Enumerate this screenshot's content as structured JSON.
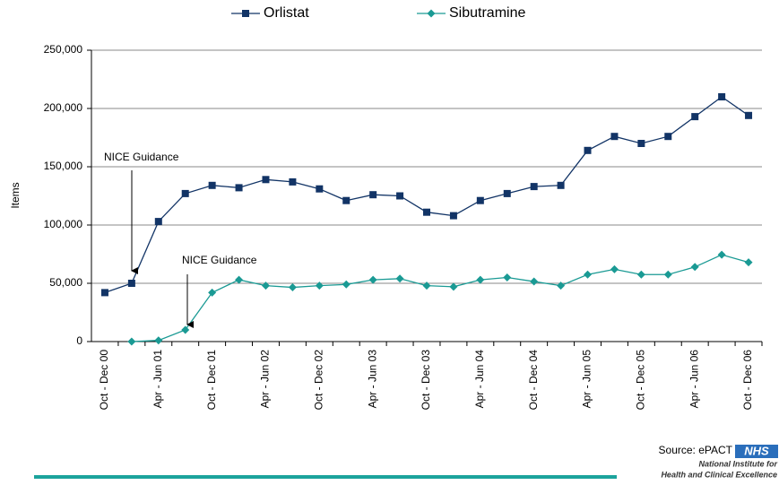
{
  "chart_data": {
    "type": "line",
    "y_label": "Items",
    "categories": [
      "Oct - Dec 00",
      null,
      "Apr - Jun 01",
      null,
      "Oct - Dec 01",
      null,
      "Apr - Jun 02",
      null,
      "Oct - Dec 02",
      null,
      "Apr - Jun 03",
      null,
      "Oct - Dec 03",
      null,
      "Apr - Jun 04",
      null,
      "Oct - Dec 04",
      null,
      "Apr - Jun 05",
      null,
      "Oct - Dec 05",
      null,
      "Apr - Jun 06",
      null,
      "Oct - Dec 06"
    ],
    "series": [
      {
        "name": "Orlistat",
        "color": "#123466",
        "marker": "square",
        "values": [
          42000,
          50000,
          103000,
          127000,
          134000,
          132000,
          139000,
          137000,
          131000,
          121000,
          126000,
          125000,
          111000,
          108000,
          121000,
          127000,
          133000,
          134000,
          164000,
          176000,
          170000,
          176000,
          193000,
          210000,
          194000
        ]
      },
      {
        "name": "Sibutramine",
        "color": "#1a9a94",
        "marker": "diamond",
        "values": [
          null,
          0,
          1000,
          10000,
          42000,
          53000,
          48000,
          46500,
          48000,
          49000,
          53000,
          54000,
          48000,
          47000,
          53000,
          55000,
          51500,
          48000,
          57500,
          62000,
          57500,
          57500,
          64000,
          74500,
          68000
        ]
      }
    ],
    "ylim": [
      0,
      250000
    ],
    "yticks": [
      0,
      {
        "value": 50000,
        "label": "50,000"
      },
      {
        "value": 100000,
        "label": "100,000"
      },
      {
        "value": 150000,
        "label": "150,000"
      },
      {
        "value": 200000,
        "label": "200,000"
      },
      {
        "value": 250000,
        "label": "250,000"
      }
    ],
    "grid": true,
    "legend": "top",
    "annotations": [
      {
        "text": "NICE Guidance"
      },
      {
        "text": "NICE Guidance"
      }
    ]
  },
  "footer": {
    "source": "Source: ePACT",
    "logo": "NHS",
    "org_line1": "National Institute for",
    "org_line2": "Health and Clinical Excellence"
  }
}
